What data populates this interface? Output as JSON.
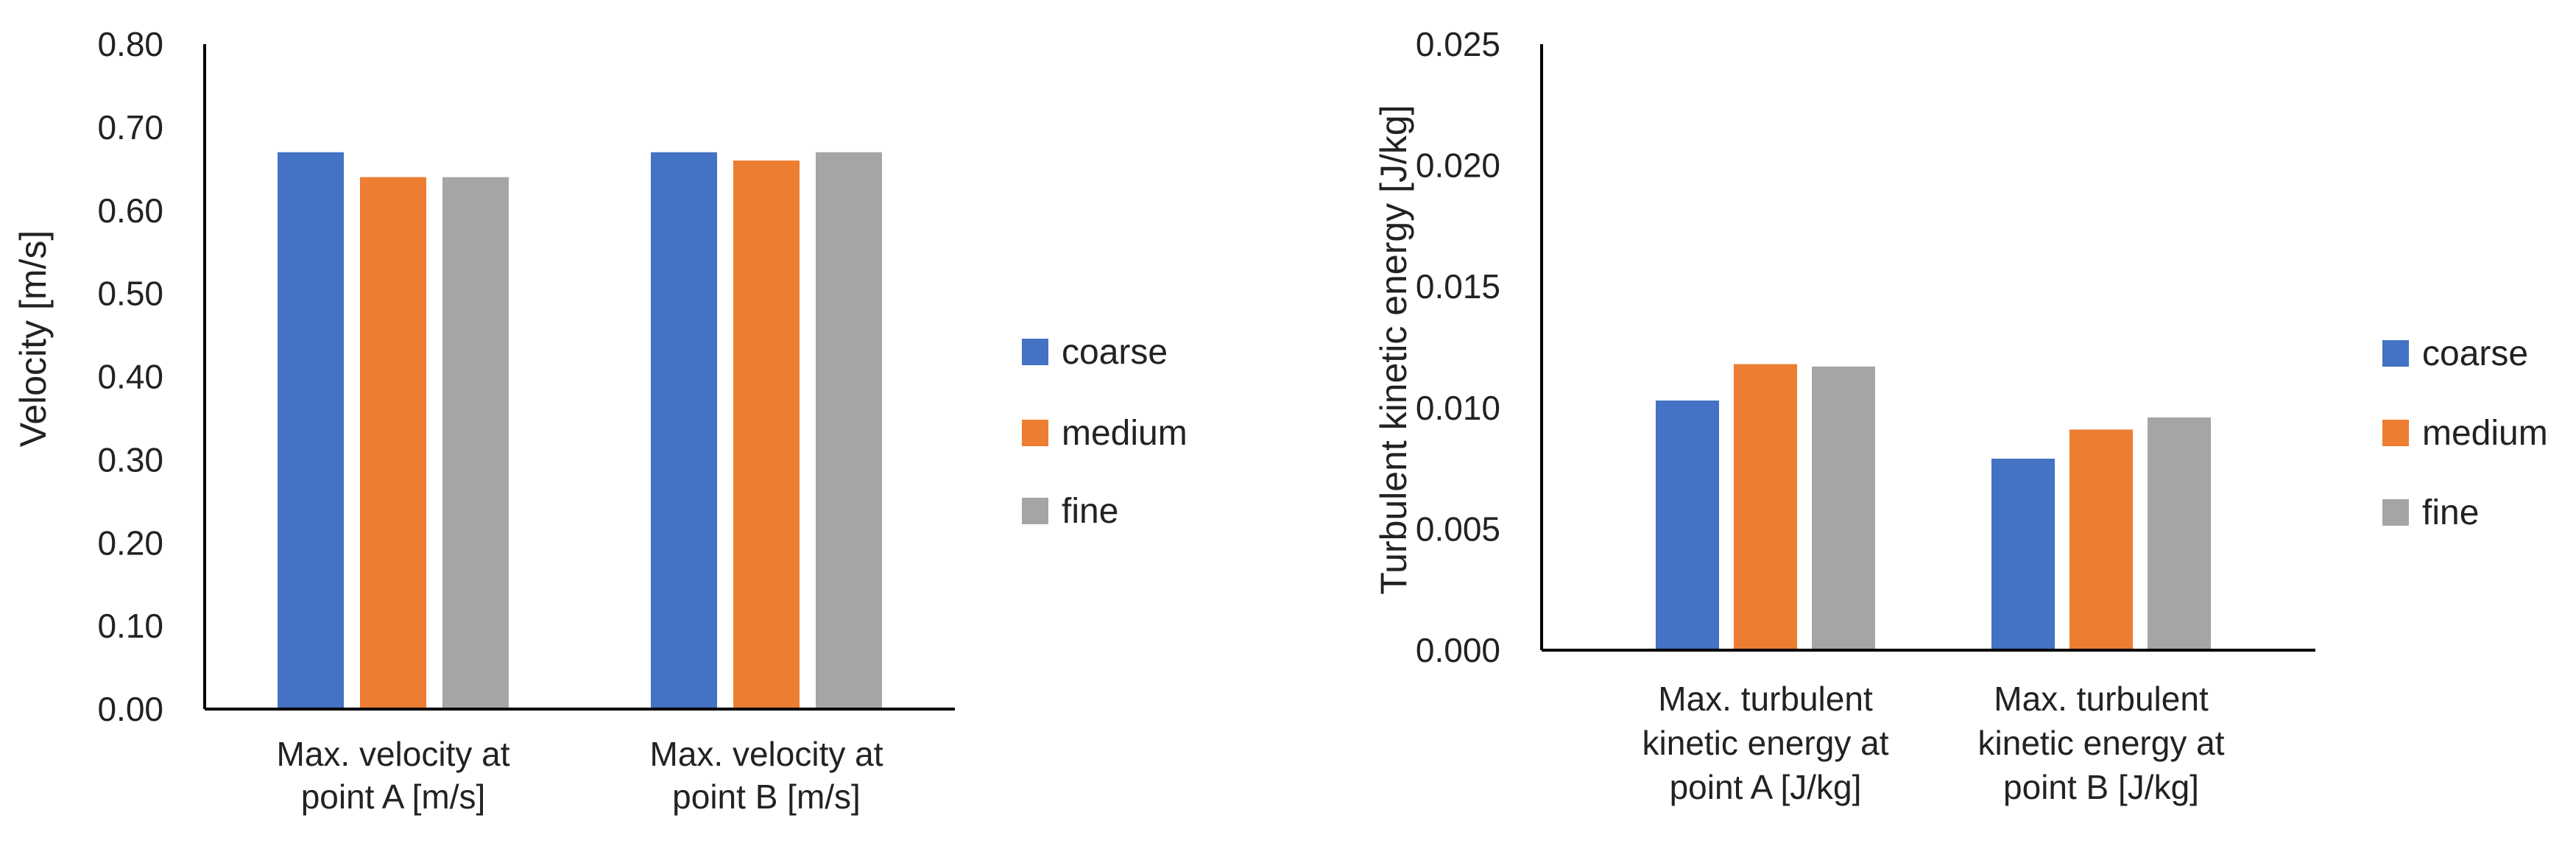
{
  "colors": {
    "coarse": "#4472c4",
    "medium": "#ed7d31",
    "fine": "#a5a5a5",
    "axis": "#000000",
    "text": "#222222"
  },
  "chart_data": [
    {
      "type": "bar",
      "categories": [
        [
          "Max. velocity at",
          "point A [m/s]"
        ],
        [
          "Max. velocity at",
          "point B [m/s]"
        ]
      ],
      "series": [
        {
          "name": "coarse",
          "values": [
            0.67,
            0.67
          ]
        },
        {
          "name": "medium",
          "values": [
            0.64,
            0.66
          ]
        },
        {
          "name": "fine",
          "values": [
            0.64,
            0.67
          ]
        }
      ],
      "ylabel": "Velocity [m/s]",
      "ylim": [
        0,
        0.8
      ],
      "yticks": [
        "0.00",
        "0.10",
        "0.20",
        "0.30",
        "0.40",
        "0.50",
        "0.60",
        "0.70",
        "0.80"
      ],
      "grid": false,
      "legend": "right"
    },
    {
      "type": "bar",
      "categories": [
        [
          "Max. turbulent",
          "kinetic energy at",
          "point A [J/kg]"
        ],
        [
          "Max. turbulent",
          "kinetic energy at",
          "point B [J/kg]"
        ]
      ],
      "series": [
        {
          "name": "coarse",
          "values": [
            0.0103,
            0.0079
          ]
        },
        {
          "name": "medium",
          "values": [
            0.0118,
            0.0091
          ]
        },
        {
          "name": "fine",
          "values": [
            0.0117,
            0.0096
          ]
        }
      ],
      "ylabel": "Turbulent kinetic energy [J/kg]",
      "ylim": [
        0,
        0.025
      ],
      "yticks": [
        "0.000",
        "0.005",
        "0.010",
        "0.015",
        "0.020",
        "0.025"
      ],
      "grid": false,
      "legend": "right"
    }
  ]
}
